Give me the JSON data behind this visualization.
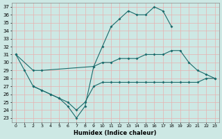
{
  "xlabel": "Humidex (Indice chaleur)",
  "xlim": [
    -0.5,
    23.5
  ],
  "ylim": [
    22.5,
    37.5
  ],
  "xticks": [
    0,
    1,
    2,
    3,
    4,
    5,
    6,
    7,
    8,
    9,
    10,
    11,
    12,
    13,
    14,
    15,
    16,
    17,
    18,
    19,
    20,
    21,
    22,
    23
  ],
  "yticks": [
    23,
    24,
    25,
    26,
    27,
    28,
    29,
    30,
    31,
    32,
    33,
    34,
    35,
    36,
    37
  ],
  "background_color": "#cde8e4",
  "grid_color": "#e8b0b0",
  "line_color": "#1a6b6b",
  "line1_x": [
    0,
    1,
    2,
    3,
    4,
    5,
    6,
    7,
    8,
    9,
    10,
    11,
    12,
    13,
    14,
    15,
    16,
    17,
    18
  ],
  "line1_y": [
    31,
    29,
    27,
    26.5,
    26,
    25.5,
    24.5,
    23,
    24.5,
    29.5,
    32,
    34.5,
    35.5,
    36.5,
    36,
    36,
    37,
    36.5,
    34.5
  ],
  "line2_x": [
    0,
    2,
    3,
    9,
    10,
    11,
    12,
    13,
    14,
    15,
    16,
    17,
    18,
    19,
    20,
    21,
    22,
    23
  ],
  "line2_y": [
    31,
    29,
    29,
    29.5,
    30,
    30,
    30.5,
    30.5,
    30.5,
    31,
    31,
    31,
    31.5,
    31.5,
    30,
    29,
    28.5,
    28
  ],
  "line3_x": [
    2,
    3,
    4,
    5,
    6,
    7,
    8,
    9,
    10,
    11,
    12,
    13,
    14,
    15,
    16,
    17,
    18,
    19,
    20,
    21,
    22,
    23
  ],
  "line3_y": [
    27,
    26.5,
    26,
    25.5,
    25,
    24,
    25,
    27,
    27.5,
    27.5,
    27.5,
    27.5,
    27.5,
    27.5,
    27.5,
    27.5,
    27.5,
    27.5,
    27.5,
    27.5,
    28,
    28
  ]
}
